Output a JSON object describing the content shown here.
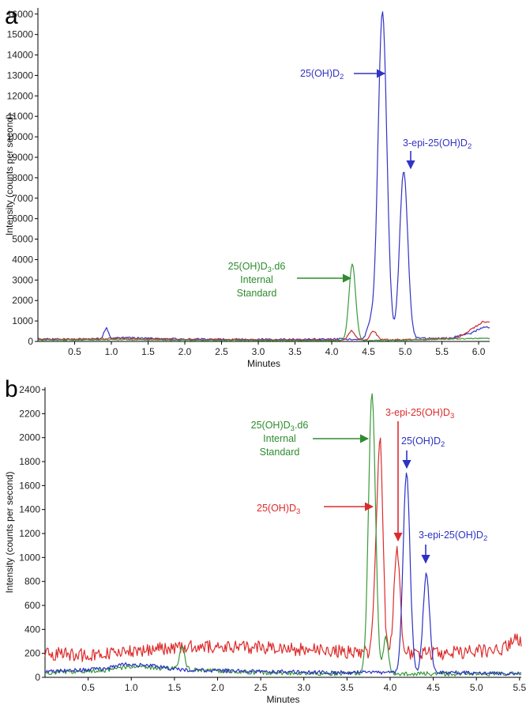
{
  "chart_data": [
    {
      "panel": "a",
      "type": "line",
      "xlabel": "Minutes",
      "ylabel": "Intensity (counts per second)",
      "xlim": [
        0,
        6.15
      ],
      "ylim": [
        0,
        16300
      ],
      "xticks": [
        0.5,
        1.0,
        1.5,
        2.0,
        2.5,
        3.0,
        3.5,
        4.0,
        4.5,
        5.0,
        5.5,
        6.0
      ],
      "yticks": [
        0,
        1000,
        2000,
        3000,
        4000,
        5000,
        6000,
        7000,
        8000,
        9000,
        10000,
        11000,
        12000,
        13000,
        14000,
        15000,
        16000
      ],
      "xtick_decimals": 1,
      "noise_scale": 1,
      "series": [
        {
          "color": "#3333c4",
          "noise": 45,
          "baseline": [
            [
              0,
              120
            ],
            [
              0.6,
              90
            ],
            [
              0.8,
              130
            ],
            [
              1.2,
              180
            ],
            [
              2.0,
              110
            ],
            [
              3.5,
              90
            ],
            [
              4.2,
              110
            ],
            [
              5.6,
              160
            ],
            [
              5.9,
              400
            ],
            [
              6.05,
              700
            ]
          ],
          "peaks": [
            [
              0.93,
              500,
              0.03
            ],
            [
              4.52,
              700,
              0.04
            ],
            [
              4.69,
              16000,
              0.06
            ],
            [
              4.98,
              8200,
              0.055
            ]
          ]
        },
        {
          "color": "#cc2a2a",
          "noise": 40,
          "baseline": [
            [
              0,
              90
            ],
            [
              1.0,
              140
            ],
            [
              2.0,
              100
            ],
            [
              3.5,
              70
            ],
            [
              5.0,
              90
            ],
            [
              5.7,
              150
            ],
            [
              5.95,
              700
            ],
            [
              6.05,
              950
            ]
          ],
          "peaks": [
            [
              4.27,
              450,
              0.04
            ],
            [
              4.57,
              420,
              0.04
            ]
          ]
        },
        {
          "color": "#3a9a3a",
          "noise": 25,
          "baseline": [
            [
              0,
              60
            ],
            [
              1.0,
              90
            ],
            [
              2.0,
              60
            ],
            [
              4.0,
              40
            ],
            [
              5.0,
              60
            ],
            [
              6.0,
              150
            ]
          ],
          "peaks": [
            [
              4.28,
              3750,
              0.045
            ]
          ]
        }
      ],
      "annotations": [
        {
          "parts": [
            {
              "t": "25(OH)D"
            },
            {
              "t": "2",
              "sub": true
            }
          ],
          "color": "#3333c4"
        },
        {
          "parts": [
            {
              "t": "3-epi-25(OH)D"
            },
            {
              "t": "2",
              "sub": true
            }
          ],
          "color": "#3333c4"
        },
        {
          "parts": [
            {
              "t": "25(OH)D"
            },
            {
              "t": "3",
              "sub": true
            },
            {
              "t": ".d6"
            }
          ],
          "color": "#2e8b2e"
        },
        {
          "parts": [
            {
              "t": "Internal"
            }
          ],
          "color": "#2e8b2e"
        },
        {
          "parts": [
            {
              "t": "Standard"
            }
          ],
          "color": "#2e8b2e"
        }
      ]
    },
    {
      "panel": "b",
      "type": "line",
      "xlabel": "Minutes",
      "ylabel": "Intensity (counts per second)",
      "xlim": [
        0,
        5.52
      ],
      "ylim": [
        0,
        2420
      ],
      "xticks": [
        0.5,
        1.0,
        1.5,
        2.0,
        2.5,
        3.0,
        3.5,
        4.0,
        4.5,
        5.0,
        5.5
      ],
      "yticks": [
        0,
        200,
        400,
        600,
        800,
        1000,
        1200,
        1400,
        1600,
        1800,
        2000,
        2200,
        2400
      ],
      "xtick_decimals": 1,
      "noise_scale": 1,
      "series": [
        {
          "color": "#dd2b2b",
          "noise": 55,
          "baseline": [
            [
              0,
              200
            ],
            [
              0.6,
              180
            ],
            [
              0.8,
              200
            ],
            [
              1.2,
              230
            ],
            [
              1.8,
              260
            ],
            [
              2.5,
              250
            ],
            [
              3.0,
              230
            ],
            [
              3.6,
              210
            ],
            [
              4.6,
              200
            ],
            [
              5.3,
              230
            ],
            [
              5.45,
              330
            ],
            [
              5.52,
              300
            ]
          ],
          "peaks": [
            [
              3.84,
              680,
              0.03
            ],
            [
              3.89,
              1560,
              0.03
            ],
            [
              4.08,
              880,
              0.035
            ]
          ]
        },
        {
          "color": "#3a9a3a",
          "noise": 18,
          "baseline": [
            [
              0,
              40
            ],
            [
              0.7,
              60
            ],
            [
              1.0,
              90
            ],
            [
              1.5,
              70
            ],
            [
              2.5,
              40
            ],
            [
              3.5,
              30
            ],
            [
              4.5,
              30
            ],
            [
              5.52,
              30
            ]
          ],
          "peaks": [
            [
              1.59,
              190,
              0.03
            ],
            [
              3.79,
              2350,
              0.04
            ],
            [
              3.95,
              300,
              0.03
            ]
          ]
        },
        {
          "color": "#2c32c4",
          "noise": 16,
          "baseline": [
            [
              0,
              50
            ],
            [
              0.7,
              70
            ],
            [
              0.9,
              110
            ],
            [
              1.2,
              100
            ],
            [
              1.6,
              60
            ],
            [
              2.5,
              50
            ],
            [
              3.5,
              40
            ],
            [
              4.7,
              40
            ],
            [
              5.52,
              30
            ]
          ],
          "peaks": [
            [
              4.19,
              1670,
              0.04
            ],
            [
              4.42,
              820,
              0.038
            ]
          ]
        }
      ],
      "annotations": [
        {
          "parts": [
            {
              "t": "25(OH)D"
            },
            {
              "t": "3",
              "sub": true
            },
            {
              "t": ".d6"
            }
          ],
          "color": "#2e8b2e"
        },
        {
          "parts": [
            {
              "t": "Internal"
            }
          ],
          "color": "#2e8b2e"
        },
        {
          "parts": [
            {
              "t": "Standard"
            }
          ],
          "color": "#2e8b2e"
        },
        {
          "parts": [
            {
              "t": "3-epi-25(OH)D"
            },
            {
              "t": "3",
              "sub": true
            }
          ],
          "color": "#dd2b2b"
        },
        {
          "parts": [
            {
              "t": "25(OH)D"
            },
            {
              "t": "2",
              "sub": true
            }
          ],
          "color": "#2c32c4"
        },
        {
          "parts": [
            {
              "t": "25(OH)D"
            },
            {
              "t": "3",
              "sub": true
            }
          ],
          "color": "#dd2b2b"
        },
        {
          "parts": [
            {
              "t": "3-epi-25(OH)D"
            },
            {
              "t": "2",
              "sub": true
            }
          ],
          "color": "#2c32c4"
        }
      ]
    }
  ],
  "panel_labels": {
    "a": "a",
    "b": "b"
  }
}
